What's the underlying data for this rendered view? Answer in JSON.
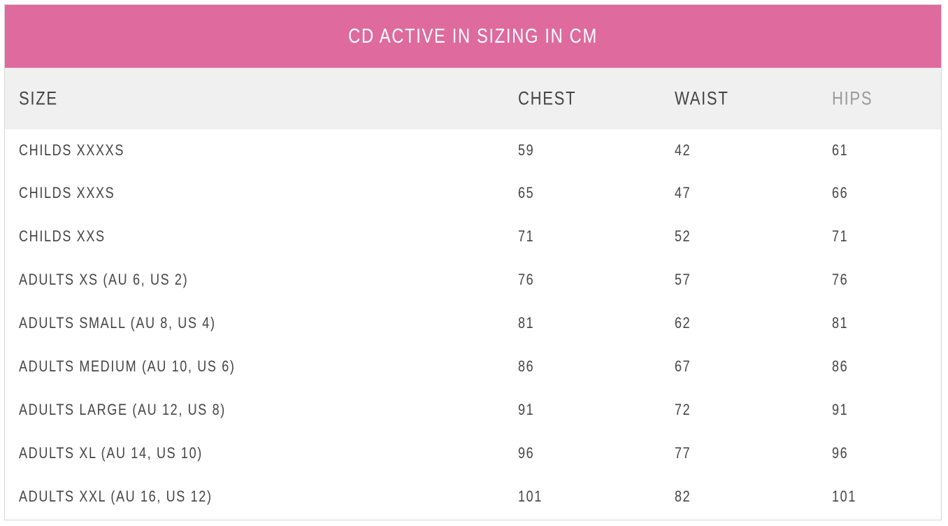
{
  "title": "CD ACTIVE IN SIZING IN CM",
  "colors": {
    "title_bar": "#de6a9e",
    "header_bg": "#f0f0f0",
    "text": "#444444",
    "muted_header": "#9a9a9a"
  },
  "headers": {
    "size": "SIZE",
    "chest": "CHEST",
    "waist": "WAIST",
    "hips": "HIPS"
  },
  "rows": [
    {
      "size": "CHILDS XXXXS",
      "chest": "59",
      "waist": "42",
      "hips": "61"
    },
    {
      "size": "CHILDS XXXS",
      "chest": "65",
      "waist": "47",
      "hips": "66"
    },
    {
      "size": "CHILDS XXS",
      "chest": "71",
      "waist": "52",
      "hips": "71"
    },
    {
      "size": "ADULTS XS (AU 6, US 2)",
      "chest": "76",
      "waist": "57",
      "hips": "76"
    },
    {
      "size": "ADULTS SMALL (AU 8, US 4)",
      "chest": "81",
      "waist": "62",
      "hips": "81"
    },
    {
      "size": "ADULTS MEDIUM (AU 10, US 6)",
      "chest": "86",
      "waist": "67",
      "hips": "86"
    },
    {
      "size": "ADULTS LARGE (AU 12, US 8)",
      "chest": "91",
      "waist": "72",
      "hips": "91"
    },
    {
      "size": "ADULTS XL (AU 14, US 10)",
      "chest": "96",
      "waist": "77",
      "hips": "96"
    },
    {
      "size": "ADULTS XXL (AU 16, US 12)",
      "chest": "101",
      "waist": "82",
      "hips": "101"
    }
  ]
}
